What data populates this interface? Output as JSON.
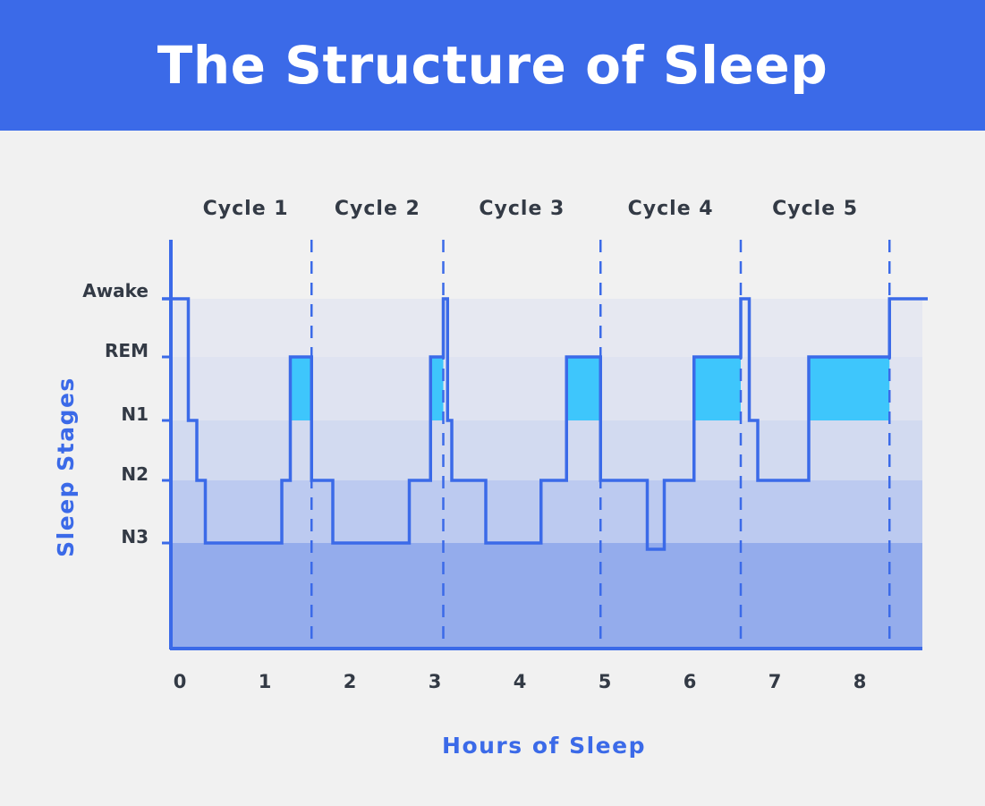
{
  "header": {
    "title": "The Structure of Sleep"
  },
  "colors": {
    "header_bg": "#3b6ae8",
    "line": "#3b6ae8",
    "rem_fill": "#3ec6fc",
    "rem_label": "#29b6f6",
    "band_awake": "#e6e8f1",
    "band_rem": "#dfe3f1",
    "band_n1": "#d2daf0",
    "band_n2": "#bccaf0",
    "band_n3": "#94acec"
  },
  "chart_data": {
    "type": "line",
    "step": true,
    "xlabel": "Hours of Sleep",
    "ylabel": "Sleep Stages",
    "xlim": [
      0,
      8.8
    ],
    "x_ticks": [
      "0",
      "1",
      "2",
      "3",
      "4",
      "5",
      "6",
      "7",
      "8"
    ],
    "stages": [
      {
        "key": "awake",
        "label": "Awake",
        "value": 5
      },
      {
        "key": "rem",
        "label": "REM",
        "value": 4
      },
      {
        "key": "n1",
        "label": "N1",
        "value": 3
      },
      {
        "key": "n2",
        "label": "N2",
        "value": 2
      },
      {
        "key": "n3",
        "label": "N3",
        "value": 1
      }
    ],
    "cycles": [
      {
        "label": "Cycle 1",
        "end": 1.55
      },
      {
        "label": "Cycle 2",
        "end": 3.1
      },
      {
        "label": "Cycle 3",
        "end": 4.95
      },
      {
        "label": "Cycle 4",
        "end": 6.6
      },
      {
        "label": "Cycle 5",
        "end": 8.35
      }
    ],
    "rem_periods": [
      [
        1.3,
        1.55
      ],
      [
        2.95,
        3.1
      ],
      [
        4.55,
        4.95
      ],
      [
        6.05,
        6.6
      ],
      [
        7.4,
        8.35
      ]
    ],
    "hypnogram": [
      [
        0,
        5
      ],
      [
        0.1,
        3
      ],
      [
        0.2,
        2
      ],
      [
        0.3,
        1
      ],
      [
        1.2,
        2
      ],
      [
        1.3,
        4
      ],
      [
        1.55,
        2
      ],
      [
        1.8,
        1
      ],
      [
        2.7,
        2
      ],
      [
        2.95,
        4
      ],
      [
        3.1,
        5
      ],
      [
        3.15,
        3
      ],
      [
        3.2,
        2
      ],
      [
        3.6,
        1
      ],
      [
        4.25,
        2
      ],
      [
        4.55,
        4
      ],
      [
        4.95,
        2
      ],
      [
        5.5,
        0.9
      ],
      [
        5.7,
        2
      ],
      [
        6.05,
        4
      ],
      [
        6.6,
        5
      ],
      [
        6.7,
        3
      ],
      [
        6.8,
        2
      ],
      [
        7.4,
        4
      ],
      [
        8.35,
        5
      ],
      [
        8.8,
        5
      ]
    ]
  }
}
